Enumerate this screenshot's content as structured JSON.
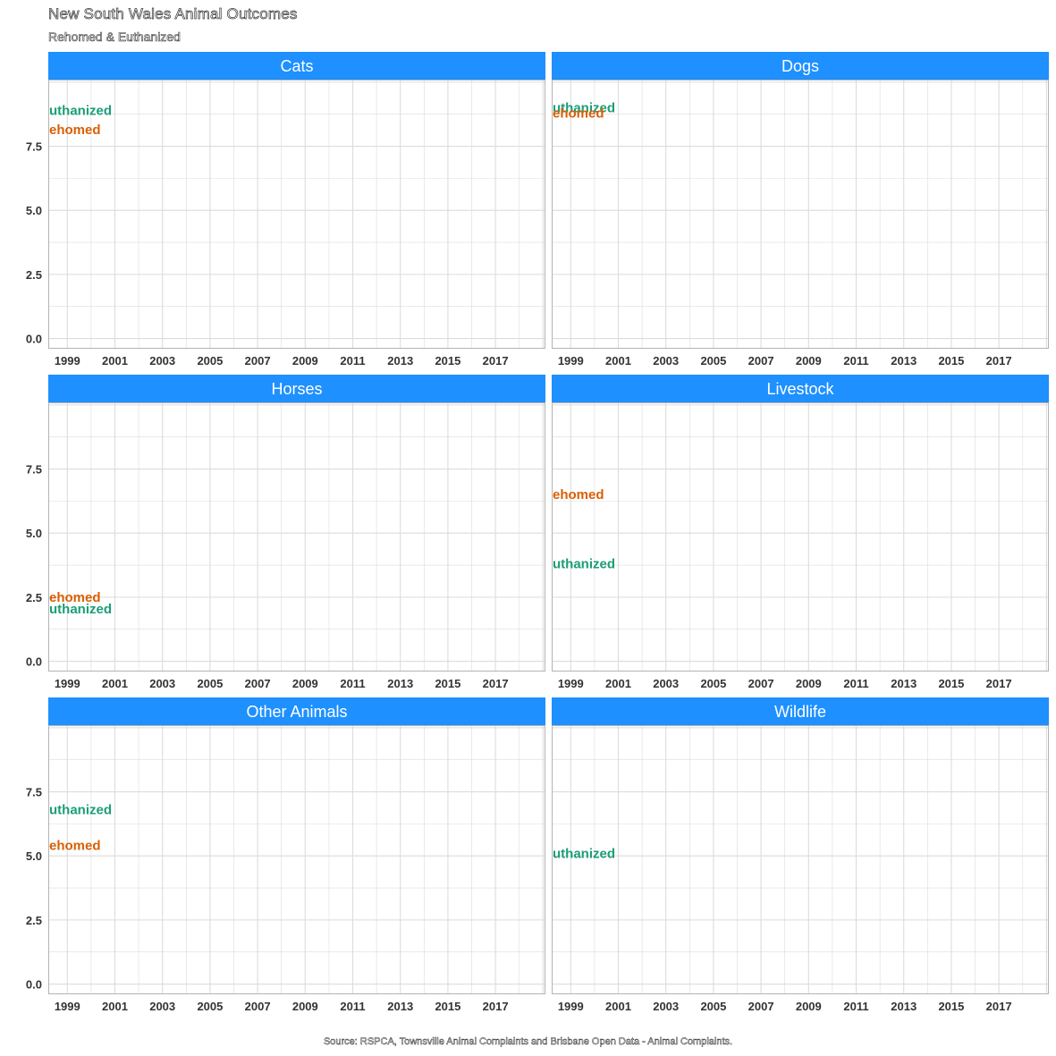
{
  "title": "New South Wales Animal Outcomes",
  "subtitle": "Rehomed & Euthanized",
  "caption": "Source: RSPCA, Townsville Animal Complaints and Brisbane Open Data - Animal Complaints.",
  "colors": {
    "strip": "#1E90FF",
    "rehomed": "#D95F02",
    "euthanized": "#1B9E77",
    "grid": "#DCDCDC",
    "panel_border": "#B3B3B3"
  },
  "chart_data": {
    "type": "line",
    "facets": [
      "Cats",
      "Dogs",
      "Horses",
      "Livestock",
      "Other Animals",
      "Wildlife"
    ],
    "xticks": [
      "1999",
      "2001",
      "2003",
      "2005",
      "2007",
      "2009",
      "2011",
      "2013",
      "2015",
      "2017"
    ],
    "yticks": [
      "0.0",
      "2.5",
      "5.0",
      "7.5"
    ],
    "ylim": [
      -0.4,
      10.1
    ],
    "xlim": [
      1998.2,
      2019.1
    ],
    "grid": true,
    "labels": [
      {
        "facet": "Cats",
        "text": "uthanized",
        "series": "euthanized",
        "x": 1998.2,
        "y": 8.9
      },
      {
        "facet": "Cats",
        "text": "ehomed",
        "series": "rehomed",
        "x": 1998.2,
        "y": 8.15
      },
      {
        "facet": "Dogs",
        "text": "uthanized",
        "series": "euthanized",
        "x": 1998.2,
        "y": 9.0
      },
      {
        "facet": "Dogs",
        "text": "ehomed",
        "series": "rehomed",
        "x": 1998.2,
        "y": 8.8
      },
      {
        "facet": "Horses",
        "text": "ehomed",
        "series": "rehomed",
        "x": 1998.2,
        "y": 2.5
      },
      {
        "facet": "Horses",
        "text": "uthanized",
        "series": "euthanized",
        "x": 1998.2,
        "y": 2.05
      },
      {
        "facet": "Livestock",
        "text": "ehomed",
        "series": "rehomed",
        "x": 1998.2,
        "y": 6.5
      },
      {
        "facet": "Livestock",
        "text": "uthanized",
        "series": "euthanized",
        "x": 1998.2,
        "y": 3.8
      },
      {
        "facet": "Other Animals",
        "text": "uthanized",
        "series": "euthanized",
        "x": 1998.2,
        "y": 6.8
      },
      {
        "facet": "Other Animals",
        "text": "ehomed",
        "series": "rehomed",
        "x": 1998.2,
        "y": 5.4
      },
      {
        "facet": "Wildlife",
        "text": "uthanized",
        "series": "euthanized",
        "x": 1998.2,
        "y": 5.1
      }
    ]
  }
}
